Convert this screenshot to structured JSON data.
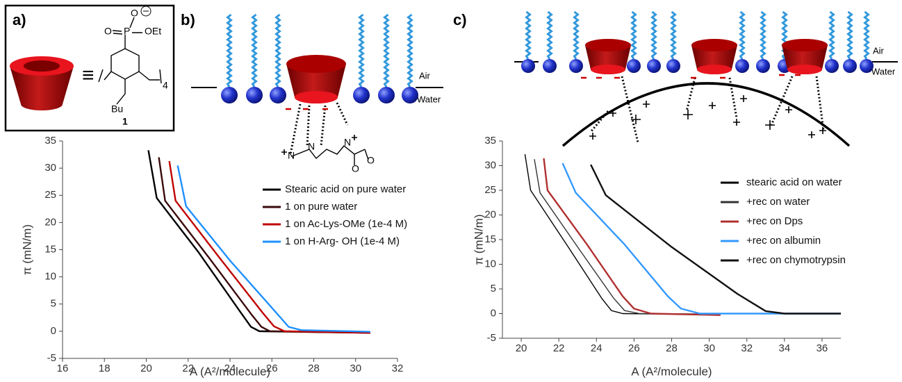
{
  "panels": [
    {
      "label": "a)",
      "texts": [
        "O",
        "P",
        "OEt",
        "O",
        "Bu",
        "4",
        "1",
        "≡"
      ]
    },
    {
      "label": "b)",
      "texts": [
        "Air",
        "Water",
        "N",
        "N",
        "N",
        "O",
        "O"
      ]
    },
    {
      "label": "c)",
      "texts": [
        "Air",
        "Water"
      ]
    }
  ],
  "chart_data": [
    {
      "type": "line",
      "x_label": "A (A²/molecule)",
      "y_label": "π (mN/m)",
      "xlim": [
        16,
        32
      ],
      "xticks": [
        16,
        18,
        20,
        22,
        24,
        26,
        28,
        30,
        32
      ],
      "ylim": [
        -5,
        35
      ],
      "yticks": [
        -5,
        0,
        5,
        10,
        15,
        20,
        25,
        30,
        35
      ],
      "legend": "right",
      "series": [
        {
          "name": "Stearic acid on pure water",
          "color": "#000000",
          "x": [
            20.1,
            20.5,
            22.5,
            24.5,
            25.0,
            25.4,
            30.7
          ],
          "values": [
            33.3,
            24.5,
            14.5,
            3.5,
            0.8,
            0,
            -0.3
          ]
        },
        {
          "name": "1 on pure water",
          "color": "#3a0a0a",
          "x": [
            20.6,
            20.9,
            23.0,
            25.0,
            25.5,
            25.9,
            30.7
          ],
          "values": [
            32.0,
            24.0,
            13.5,
            3.2,
            0.8,
            0,
            -0.3
          ]
        },
        {
          "name": "1 on Ac-Lys-OMe (1e-4 M)",
          "color": "#c00000",
          "x": [
            21.1,
            21.4,
            23.5,
            25.6,
            26.1,
            26.6,
            30.7
          ],
          "values": [
            31.3,
            24.0,
            13.5,
            3.2,
            0.9,
            0,
            -0.3
          ]
        },
        {
          "name": "1 on H-Arg- OH (1e-4 M)",
          "color": "#1e90ff",
          "x": [
            21.5,
            21.9,
            24.0,
            26.3,
            26.8,
            27.4,
            30.7
          ],
          "values": [
            30.5,
            23.0,
            13.0,
            3.0,
            0.8,
            0.2,
            -0.1
          ]
        }
      ]
    },
    {
      "type": "line",
      "x_label": "A (A²/molecule)",
      "y_label": "π (mN/m)",
      "xlim": [
        19,
        37
      ],
      "xticks": [
        20,
        22,
        24,
        26,
        28,
        30,
        32,
        34,
        36
      ],
      "ylim": [
        -5,
        35
      ],
      "yticks": [
        -5,
        0,
        5,
        10,
        15,
        20,
        25,
        30,
        35
      ],
      "legend": "right",
      "series": [
        {
          "name": "stearic acid on water",
          "color": "#000000",
          "x": [
            20.2,
            20.5,
            22.5,
            24.3,
            24.8,
            25.4,
            30.5
          ],
          "values": [
            32.3,
            25.0,
            13.5,
            3.0,
            0.6,
            0,
            -0.2
          ]
        },
        {
          "name": "+rec on water",
          "color": "#333333",
          "x": [
            20.7,
            21.0,
            23.0,
            24.9,
            25.5,
            26.3,
            30.6
          ],
          "values": [
            31.3,
            24.5,
            13.5,
            3.2,
            0.6,
            0,
            -0.1
          ]
        },
        {
          "name": "+rec on Dps",
          "color": "#b03030",
          "x": [
            21.2,
            21.4,
            23.5,
            25.4,
            26.0,
            26.9,
            30.6
          ],
          "values": [
            31.5,
            25.0,
            14.0,
            3.5,
            1.0,
            0,
            -0.3
          ]
        },
        {
          "name": "+rec on albumin",
          "color": "#3399ff",
          "x": [
            22.2,
            22.9,
            25.5,
            27.8,
            28.5,
            29.5,
            37.0
          ],
          "values": [
            30.5,
            24.5,
            14.0,
            3.5,
            1.0,
            0,
            0
          ]
        },
        {
          "name": "+rec on chymotrypsin",
          "color": "#111111",
          "x": [
            23.7,
            24.5,
            28.0,
            31.5,
            33.0,
            34.0,
            37.0
          ],
          "values": [
            30.2,
            24.0,
            13.5,
            4.0,
            0.5,
            0,
            0
          ]
        }
      ]
    }
  ]
}
